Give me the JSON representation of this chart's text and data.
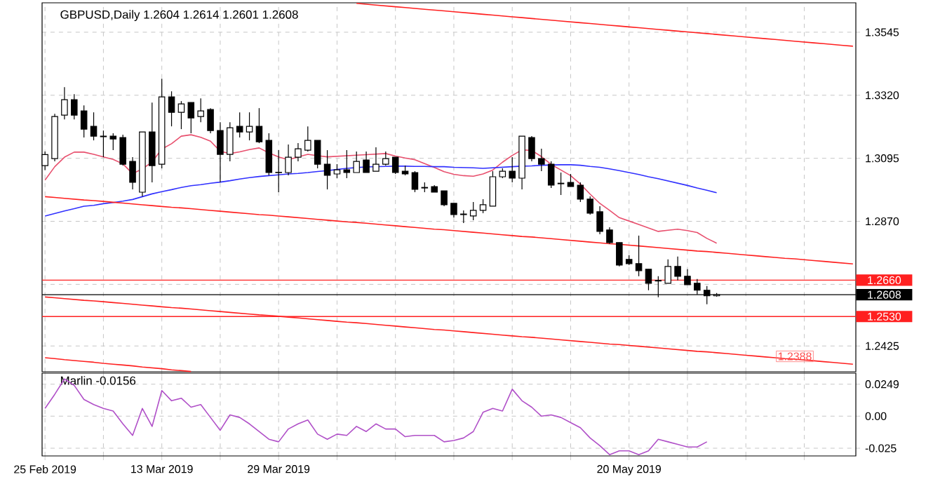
{
  "chart_data": [
    {
      "type": "candlestick",
      "title": "GBPUSD,Daily 1.2604 1.2614 1.2601 1.2608",
      "categories": [
        null,
        null,
        null,
        null,
        null,
        null,
        null,
        null,
        null,
        null,
        null,
        null,
        null,
        null,
        null,
        null,
        null,
        null,
        null,
        null,
        null,
        null,
        null,
        null,
        null,
        null,
        null,
        null,
        null,
        null,
        null,
        null,
        null,
        null,
        null,
        null,
        null,
        null,
        null,
        null,
        null,
        null,
        null,
        null,
        null,
        null,
        null,
        null,
        null,
        null,
        null,
        null,
        null,
        null,
        null,
        null,
        null,
        null,
        null,
        null,
        null,
        null,
        null,
        null,
        null,
        null,
        null,
        null,
        null,
        null,
        null,
        null,
        null,
        null,
        null,
        null,
        null,
        null,
        null,
        null,
        null,
        null,
        null,
        null
      ],
      "ohlc": [
        [
          1.3069,
          1.3119,
          1.3053,
          1.3108
        ],
        [
          1.3094,
          1.3254,
          1.3084,
          1.3244
        ],
        [
          1.3249,
          1.3349,
          1.3234,
          1.3304
        ],
        [
          1.3304,
          1.3324,
          1.3234,
          1.3249
        ],
        [
          1.3264,
          1.3284,
          1.3169,
          1.3199
        ],
        [
          1.3209,
          1.3259,
          1.3159,
          1.3174
        ],
        [
          1.3174,
          1.3194,
          1.3099,
          1.3172
        ],
        [
          1.3174,
          1.3184,
          1.3124,
          1.3164
        ],
        [
          1.3169,
          1.3179,
          1.3069,
          1.3074
        ],
        [
          1.3084,
          1.3099,
          1.2984,
          1.3009
        ],
        [
          1.2974,
          1.3189,
          1.2959,
          1.3189
        ],
        [
          1.3189,
          1.3294,
          1.3009,
          1.3069
        ],
        [
          1.3074,
          1.3379,
          1.3059,
          1.3314
        ],
        [
          1.3314,
          1.3334,
          1.3209,
          1.3259
        ],
        [
          1.3259,
          1.3299,
          1.3199,
          1.3289
        ],
        [
          1.3294,
          1.3294,
          1.3184,
          1.3239
        ],
        [
          1.3244,
          1.3309,
          1.3224,
          1.3264
        ],
        [
          1.3269,
          1.3274,
          1.3184,
          1.3194
        ],
        [
          1.3194,
          1.3224,
          1.3009,
          1.3109
        ],
        [
          1.3109,
          1.3224,
          1.3084,
          1.3204
        ],
        [
          1.3209,
          1.3259,
          1.3169,
          1.3189
        ],
        [
          1.3189,
          1.3259,
          1.3159,
          1.3209
        ],
        [
          1.3209,
          1.3274,
          1.3149,
          1.3154
        ],
        [
          1.3159,
          1.3184,
          1.3034,
          1.3044
        ],
        [
          1.3045,
          1.3124,
          1.2974,
          1.3044
        ],
        [
          1.3044,
          1.3144,
          1.3034,
          1.3099
        ],
        [
          1.3099,
          1.3149,
          1.3084,
          1.3129
        ],
        [
          1.3124,
          1.3209,
          1.3119,
          1.3159
        ],
        [
          1.3159,
          1.3159,
          1.3059,
          1.3074
        ],
        [
          1.3074,
          1.3124,
          1.2984,
          1.3034
        ],
        [
          1.3039,
          1.3074,
          1.3024,
          1.3054
        ],
        [
          1.3054,
          1.3124,
          1.3024,
          1.3044
        ],
        [
          1.3044,
          1.3119,
          1.3044,
          1.3084
        ],
        [
          1.3089,
          1.3119,
          1.3044,
          1.3044
        ],
        [
          1.3049,
          1.3134,
          1.3049,
          1.3074
        ],
        [
          1.3074,
          1.3119,
          1.3069,
          1.3094
        ],
        [
          1.3099,
          1.3099,
          1.3039,
          1.3044
        ],
        [
          1.3049,
          1.3069,
          1.3034,
          1.3039
        ],
        [
          1.3044,
          1.3049,
          1.2974,
          1.2984
        ],
        [
          1.2991,
          1.3009,
          1.2974,
          1.2989
        ],
        [
          1.2994,
          1.2999,
          1.2974,
          1.2974
        ],
        [
          1.2979,
          1.2979,
          1.2924,
          1.2929
        ],
        [
          1.2934,
          1.2934,
          1.2884,
          1.2894
        ],
        [
          1.2896,
          1.2909,
          1.2864,
          1.2894
        ],
        [
          1.2889,
          1.2939,
          1.2874,
          1.2909
        ],
        [
          1.2909,
          1.2949,
          1.2899,
          1.2929
        ],
        [
          1.2924,
          1.3049,
          1.2924,
          1.3029
        ],
        [
          1.3029,
          1.3059,
          1.3024,
          1.3049
        ],
        [
          1.3049,
          1.3099,
          1.3009,
          1.3024
        ],
        [
          1.3024,
          1.3174,
          1.2984,
          1.3174
        ],
        [
          1.3169,
          1.3174,
          1.3084,
          1.3094
        ],
        [
          1.3094,
          1.3129,
          1.3049,
          1.3074
        ],
        [
          1.3074,
          1.3084,
          1.2989,
          1.2999
        ],
        [
          1.3006,
          1.3044,
          1.2964,
          1.3004
        ],
        [
          1.3009,
          1.3039,
          1.2994,
          1.2994
        ],
        [
          1.2999,
          1.3009,
          1.2939,
          1.2949
        ],
        [
          1.2949,
          1.2959,
          1.2894,
          1.2899
        ],
        [
          1.2904,
          1.2924,
          1.2824,
          1.2834
        ],
        [
          1.2839,
          1.2849,
          1.2789,
          1.2794
        ],
        [
          1.2794,
          1.2794,
          1.2709,
          1.2714
        ],
        [
          1.2734,
          1.2749,
          1.2714,
          1.2719
        ],
        [
          1.2719,
          1.2819,
          1.2674,
          1.2694
        ],
        [
          1.2699,
          1.2699,
          1.2624,
          1.2649
        ],
        [
          1.2659,
          1.2674,
          1.2599,
          1.2657
        ],
        [
          1.2649,
          1.2734,
          1.2649,
          1.2709
        ],
        [
          1.2709,
          1.2744,
          1.2659,
          1.2674
        ],
        [
          1.2674,
          1.2699,
          1.2644,
          1.2644
        ],
        [
          1.2649,
          1.2664,
          1.2609,
          1.2624
        ],
        [
          1.2624,
          1.2639,
          1.2574,
          1.2604
        ],
        [
          1.2604,
          1.2614,
          1.2601,
          1.2608
        ],
        null,
        null,
        null,
        null,
        null,
        null,
        null,
        null,
        null,
        null,
        null,
        null,
        null,
        null
      ],
      "series": [
        {
          "type": "line",
          "color": "#e8506e",
          "values": [
            1.3017,
            1.3065,
            1.3099,
            1.3117,
            1.3117,
            1.3109,
            1.31,
            1.3091,
            1.3075,
            1.304,
            1.3057,
            1.3082,
            1.3128,
            1.3147,
            1.3174,
            1.3179,
            1.317,
            1.3156,
            1.312,
            1.3112,
            1.3118,
            1.3126,
            1.3132,
            1.3114,
            1.31,
            1.309,
            1.31,
            1.3109,
            1.3104,
            1.31,
            1.3102,
            1.3104,
            1.3106,
            1.3108,
            1.311,
            1.3112,
            1.3103,
            1.3096,
            1.309,
            1.3076,
            1.3062,
            1.3047,
            1.3038,
            1.3033,
            1.3031,
            1.3039,
            1.3053,
            1.3081,
            1.3105,
            1.3125,
            1.3123,
            1.3101,
            1.3073,
            1.3053,
            1.3033,
            1.3003,
            1.2967,
            1.2934,
            1.2909,
            1.2883,
            1.2871,
            1.2859,
            1.2846,
            1.2834,
            1.2838,
            1.2842,
            1.2837,
            1.283,
            1.2809,
            1.2792,
            null,
            null,
            null,
            null,
            null,
            null,
            null,
            null,
            null,
            null,
            null,
            null,
            null,
            null
          ]
        },
        {
          "type": "line",
          "color": "#3030ff",
          "values": [
            1.2889,
            1.2898,
            1.2907,
            1.2915,
            1.2924,
            1.2927,
            1.2933,
            1.2937,
            1.2942,
            1.2948,
            1.2958,
            1.2968,
            1.2976,
            1.2983,
            1.2991,
            1.2997,
            1.3001,
            1.3006,
            1.301,
            1.3015,
            1.3021,
            1.3026,
            1.303,
            1.3033,
            1.3036,
            1.3039,
            1.3041,
            1.3044,
            1.3048,
            1.3051,
            1.3055,
            1.3059,
            1.3062,
            1.3064,
            1.3065,
            1.3066,
            1.3067,
            1.3067,
            1.3066,
            1.3066,
            1.3065,
            1.3065,
            1.3063,
            1.3062,
            1.3061,
            1.3059,
            1.3061,
            1.3063,
            1.3065,
            1.3067,
            1.3068,
            1.307,
            1.3071,
            1.3072,
            1.3072,
            1.307,
            1.3066,
            1.3063,
            1.3057,
            1.3051,
            1.3044,
            1.3037,
            1.3029,
            1.3022,
            1.3014,
            1.3006,
            1.2998,
            1.2989,
            1.2981,
            1.2972,
            null,
            null,
            null,
            null,
            null,
            null,
            null,
            null,
            null,
            null,
            null,
            null,
            null,
            null
          ]
        },
        {
          "type": "line",
          "color": "#ff2020",
          "values": [
            null,
            null,
            null,
            null,
            null,
            null,
            null,
            null,
            null,
            null,
            null,
            null,
            null,
            null,
            null,
            null,
            null,
            null,
            null,
            null,
            null,
            null,
            null,
            null,
            null,
            null,
            null,
            null,
            null,
            null,
            null,
            null,
            1.3648,
            1.3645,
            1.3642,
            1.3639,
            1.3636,
            1.3633,
            1.363,
            1.3627,
            1.3624,
            1.3621,
            1.3618,
            1.3615,
            1.3612,
            1.3609,
            1.3606,
            1.3603,
            1.36,
            1.3597,
            1.3594,
            1.3591,
            1.3588,
            1.3585,
            1.3582,
            1.3579,
            1.3576,
            1.3573,
            1.357,
            1.3567,
            1.3564,
            1.3561,
            1.3558,
            1.3555,
            1.3552,
            1.3549,
            1.3546,
            1.3543,
            1.354,
            1.3537,
            1.3534,
            1.3531,
            1.3528,
            1.3525,
            1.3522,
            1.3519,
            1.3516,
            1.3513,
            1.351,
            1.3507,
            1.3504,
            1.3501,
            1.3498,
            1.3495
          ]
        },
        {
          "type": "line",
          "color": "#ff2020",
          "values": [
            1.2958,
            1.2955,
            1.2952,
            1.2949,
            1.2946,
            1.2944,
            1.2941,
            1.2938,
            1.2935,
            1.2932,
            1.2929,
            1.2926,
            1.2923,
            1.292,
            1.2918,
            1.2915,
            1.2912,
            1.2909,
            1.2906,
            1.2903,
            1.29,
            1.2897,
            1.2894,
            1.2892,
            1.2889,
            1.2886,
            1.2883,
            1.288,
            1.2877,
            1.2874,
            1.2871,
            1.2868,
            1.2866,
            1.2863,
            1.286,
            1.2857,
            1.2854,
            1.2851,
            1.2848,
            1.2845,
            1.2842,
            1.284,
            1.2837,
            1.2834,
            1.2831,
            1.2828,
            1.2825,
            1.2822,
            1.2819,
            1.2816,
            1.2814,
            1.2811,
            1.2808,
            1.2805,
            1.2802,
            1.2799,
            1.2796,
            1.2793,
            1.279,
            1.2788,
            1.2785,
            1.2782,
            1.2779,
            1.2776,
            1.2773,
            1.277,
            1.2767,
            1.2764,
            1.2762,
            1.2759,
            1.2756,
            1.2753,
            1.275,
            1.2747,
            1.2744,
            1.2741,
            1.2738,
            1.2736,
            1.2733,
            1.273,
            1.2727,
            1.2724,
            1.2721,
            1.2718
          ]
        },
        {
          "type": "line",
          "color": "#ff2020",
          "values": [
            1.26,
            1.2597,
            1.2594,
            1.2591,
            1.2588,
            1.2586,
            1.2583,
            1.258,
            1.2577,
            1.2574,
            1.2571,
            1.2568,
            1.2565,
            1.2562,
            1.256,
            1.2557,
            1.2554,
            1.2551,
            1.2548,
            1.2545,
            1.2542,
            1.2539,
            1.2536,
            1.2534,
            1.2531,
            1.2528,
            1.2525,
            1.2522,
            1.2519,
            1.2516,
            1.2513,
            1.251,
            1.2508,
            1.2505,
            1.2502,
            1.2499,
            1.2496,
            1.2493,
            1.249,
            1.2487,
            1.2484,
            1.2482,
            1.2479,
            1.2476,
            1.2473,
            1.247,
            1.2467,
            1.2464,
            1.2461,
            1.2458,
            1.2456,
            1.2453,
            1.245,
            1.2447,
            1.2444,
            1.2441,
            1.2438,
            1.2435,
            1.2432,
            1.243,
            1.2427,
            1.2424,
            1.2421,
            1.2418,
            1.2415,
            1.2412,
            1.2409,
            1.2406,
            1.2404,
            1.2401,
            1.2398,
            1.2395,
            1.2392,
            1.2389,
            1.2386,
            1.2383,
            1.238,
            1.2378,
            1.2375,
            1.2372,
            1.2369,
            1.2366,
            1.2363,
            1.236
          ]
        },
        {
          "type": "line",
          "color": "#ff2020",
          "values": [
            1.2383,
            1.238,
            1.2376,
            1.2373,
            1.237,
            1.2367,
            1.2363,
            1.236,
            1.2357,
            1.2354,
            1.235,
            1.2347,
            1.2344,
            1.234,
            1.2337,
            1.2334,
            null,
            null,
            null,
            null,
            null,
            null,
            null,
            null,
            null,
            null,
            null,
            null,
            null,
            null,
            null,
            null,
            null,
            null,
            null,
            null,
            null,
            null,
            null,
            null,
            null,
            null,
            null,
            null,
            null,
            null,
            null,
            null,
            null,
            null,
            null,
            null,
            null,
            null,
            null,
            null,
            null,
            null,
            null,
            null,
            null,
            null,
            null,
            null,
            null,
            null,
            null,
            null,
            null,
            null,
            null,
            null,
            null,
            null,
            null,
            null,
            null,
            null,
            null,
            null,
            null,
            null,
            null,
            null
          ]
        }
      ],
      "ref_lines": [
        {
          "axis": "y",
          "value": 1.266,
          "label": "1.2660",
          "color": "#ff2020"
        },
        {
          "axis": "y",
          "value": 1.2608,
          "label": "1.2608",
          "color": "#000000"
        },
        {
          "axis": "y",
          "value": 1.253,
          "label": "1.2530",
          "color": "#ff2020"
        }
      ],
      "annotations": [
        {
          "text": "1.2388",
          "y": 1.2388
        }
      ],
      "ylim": [
        1.2333,
        1.365
      ],
      "yticks": [
        1.3545,
        {
          "value": 1.332,
          "label": "1.3320"
        },
        1.3095,
        {
          "value": 1.287,
          "label": "1.2870"
        },
        {
          "value": 1.2645,
          "label": null
        },
        1.2425
      ],
      "grid": true,
      "tick_labels": "y"
    },
    {
      "type": "line",
      "title": "Marlin -0.0156",
      "categories": [
        "25 Feb 2019",
        null,
        null,
        null,
        null,
        null,
        null,
        null,
        null,
        null,
        null,
        null,
        "13 Mar 2019",
        null,
        null,
        null,
        null,
        null,
        null,
        null,
        null,
        null,
        null,
        null,
        "29 Mar 2019",
        null,
        null,
        null,
        null,
        null,
        null,
        null,
        null,
        null,
        null,
        null,
        null,
        null,
        null,
        null,
        null,
        null,
        null,
        null,
        null,
        null,
        null,
        null,
        null,
        null,
        null,
        null,
        null,
        null,
        null,
        null,
        null,
        null,
        null,
        null,
        "20 May 2019",
        null,
        null,
        null,
        null,
        null,
        null,
        null,
        null,
        null,
        null,
        null,
        null,
        null,
        null,
        null,
        null,
        null,
        null,
        null,
        null,
        null,
        null,
        null
      ],
      "series": [
        {
          "color": "#b050c8",
          "values": [
            0.006,
            0.017,
            0.029,
            0.024,
            0.013,
            0.009,
            0.006,
            0.004,
            -0.006,
            -0.015,
            0.006,
            -0.008,
            0.02,
            0.012,
            0.014,
            0.007,
            0.009,
            -0.001,
            -0.011,
            0.001,
            -0.001,
            -0.006,
            -0.012,
            -0.018,
            -0.02,
            -0.01,
            -0.006,
            -0.003,
            -0.014,
            -0.018,
            -0.014,
            -0.015,
            -0.008,
            -0.012,
            -0.006,
            -0.01,
            -0.01,
            -0.016,
            -0.015,
            -0.015,
            -0.015,
            -0.02,
            -0.019,
            -0.017,
            -0.012,
            0.003,
            0.006,
            0.004,
            0.021,
            0.012,
            0.007,
            0.0,
            0.001,
            -0.001,
            -0.005,
            -0.009,
            -0.017,
            -0.023,
            -0.03,
            -0.027,
            -0.027,
            -0.03,
            -0.027,
            -0.018,
            -0.02,
            -0.022,
            -0.024,
            -0.024,
            -0.02,
            null,
            null,
            null,
            null,
            null,
            null,
            null,
            null,
            null,
            null,
            null,
            null,
            null,
            null,
            null
          ]
        }
      ],
      "ylim": [
        -0.031,
        0.0335
      ],
      "yticks": [
        0.0249,
        {
          "value": 0,
          "label": "0.00"
        },
        -0.025
      ],
      "grid": true
    }
  ]
}
